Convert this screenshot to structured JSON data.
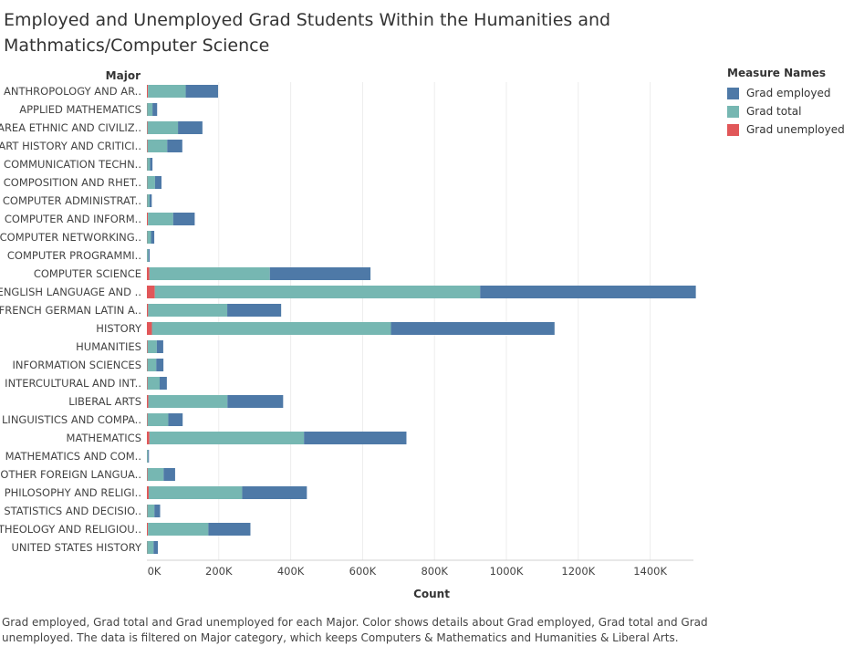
{
  "title_lines": [
    "Employed and Unemployed Grad Students Within the Humanities and",
    "Mathmatics/Computer Science"
  ],
  "legend": {
    "title": "Measure Names",
    "items": [
      {
        "label": "Grad employed",
        "color": "#4e79a7"
      },
      {
        "label": "Grad total",
        "color": "#76b7b2"
      },
      {
        "label": "Grad unemployed",
        "color": "#e15759"
      }
    ]
  },
  "caption_lines": [
    "Grad employed, Grad total and Grad unemployed for each Major.  Color shows details about Grad employed, Grad total and Grad",
    "unemployed. The data is filtered on Major category, which keeps Computers & Mathematics and Humanities & Liberal Arts."
  ],
  "chart_data": {
    "type": "bar",
    "orientation": "horizontal",
    "stacked": true,
    "ylabel": "Major",
    "xlabel": "Count",
    "xlim": [
      0,
      1500000
    ],
    "x_ticks": [
      0,
      200000,
      400000,
      600000,
      800000,
      1000000,
      1200000,
      1400000
    ],
    "x_tick_labels": [
      "0K",
      "200K",
      "400K",
      "600K",
      "800K",
      "1000K",
      "1200K",
      "1400K"
    ],
    "grid": true,
    "legend_position": "right",
    "categories": [
      "ANTHROPOLOGY AND AR..",
      "APPLIED MATHEMATICS",
      "AREA ETHNIC AND CIVILIZ..",
      "ART HISTORY AND CRITICI..",
      "COMMUNICATION TECHN..",
      "COMPOSITION AND RHET..",
      "COMPUTER ADMINISTRAT..",
      "COMPUTER AND INFORM..",
      "COMPUTER NETWORKING..",
      "COMPUTER PROGRAMMI..",
      "COMPUTER SCIENCE",
      "ENGLISH LANGUAGE AND ..",
      "FRENCH GERMAN LATIN A..",
      "HISTORY",
      "HUMANITIES",
      "INFORMATION SCIENCES",
      "INTERCULTURAL AND INT..",
      "LIBERAL ARTS",
      "LINGUISTICS AND COMPA..",
      "MATHEMATICS",
      "MATHEMATICS AND COM..",
      "OTHER FOREIGN LANGUA..",
      "PHILOSOPHY AND RELIGI..",
      "STATISTICS AND DECISIO..",
      "THEOLOGY AND RELIGIOU..",
      "UNITED STATES HISTORY"
    ],
    "series": [
      {
        "name": "Grad unemployed",
        "color": "#e15759",
        "values": [
          3000,
          500,
          1500,
          1500,
          500,
          600,
          500,
          3000,
          500,
          200,
          7000,
          22000,
          3500,
          14000,
          1500,
          1000,
          1500,
          4000,
          1500,
          7000,
          200,
          1500,
          5000,
          800,
          3000,
          500
        ]
      },
      {
        "name": "Grad total",
        "color": "#76b7b2",
        "values": [
          105000,
          15000,
          85000,
          55000,
          8000,
          22000,
          7000,
          70000,
          11000,
          4000,
          335000,
          905000,
          220000,
          665000,
          26000,
          25000,
          34000,
          220000,
          58000,
          430000,
          3000,
          45000,
          260000,
          20000,
          168000,
          18000
        ]
      },
      {
        "name": "Grad employed",
        "color": "#4e79a7",
        "values": [
          90000,
          13000,
          68000,
          42000,
          7000,
          18000,
          6000,
          60000,
          9000,
          3500,
          280000,
          600000,
          150000,
          455000,
          18000,
          20000,
          20000,
          155000,
          40000,
          285000,
          2500,
          32000,
          180000,
          16000,
          117000,
          12000
        ]
      }
    ]
  }
}
